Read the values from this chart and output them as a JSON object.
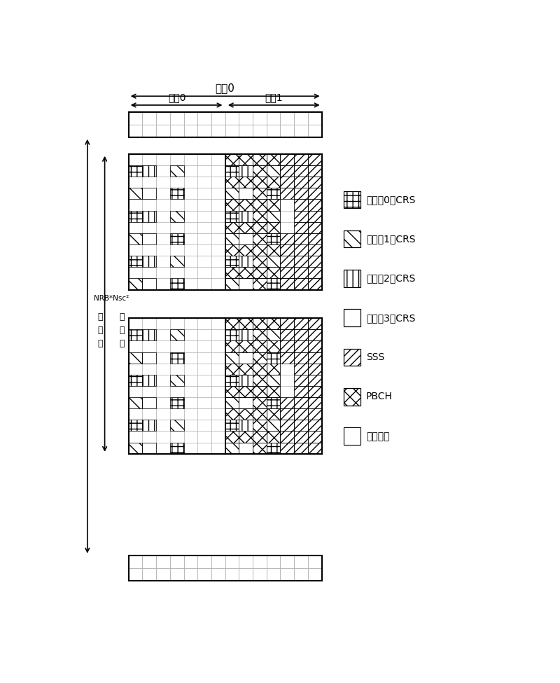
{
  "bg_color": "#ffffff",
  "grid_color": "#aaaaaa",
  "labels": {
    "zibiao0": "子偵0",
    "shijiao0": "时陑0",
    "shijiao1": "时陑1",
    "NRB_label": "NRB*Nsc²",
    "zi_zai_bo": [
      "子",
      "载",
      "波"
    ],
    "zi_zhan_pi": [
      "子",
      "展",
      "皮"
    ],
    "legend_items": [
      "天线口0的CRS",
      "天线口1的CRS",
      "天线口2的CRS",
      "天线口3的CRS",
      "SSS",
      "PBCH",
      "数据部分"
    ]
  }
}
